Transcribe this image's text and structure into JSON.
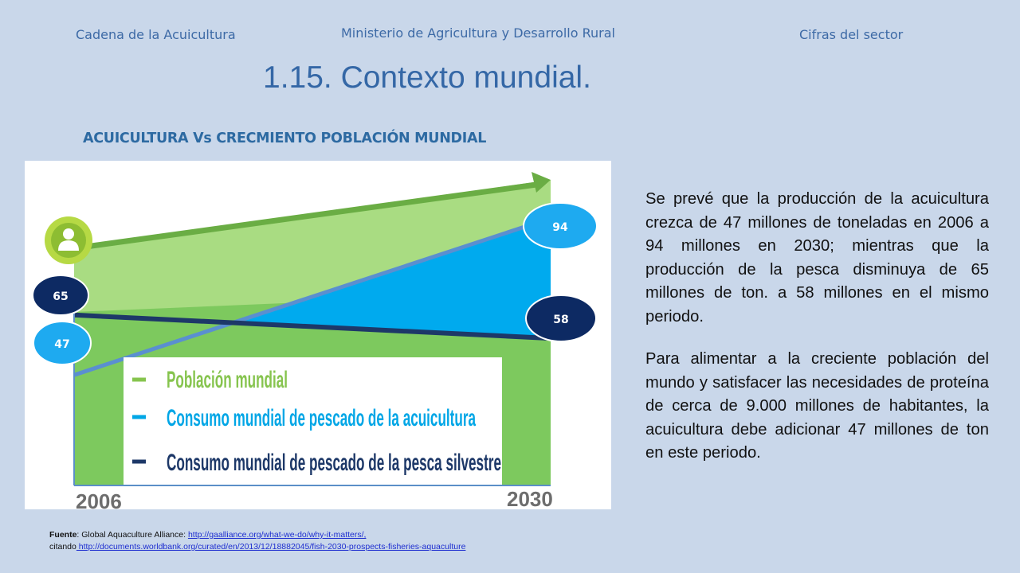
{
  "header": {
    "left": "Cadena de la Acuicultura",
    "center": "Ministerio de Agricultura y Desarrollo Rural",
    "right": "Cifras del sector"
  },
  "slide_title": "1.15. Contexto mundial.",
  "chart_data": {
    "type": "area",
    "title": "ACUICULTURA Vs CRECMIENTO POBLACIÓN MUNDIAL",
    "x": [
      "2006",
      "2030"
    ],
    "series": [
      {
        "name": "Población mundial",
        "values": [
          null,
          null
        ],
        "color": "#6aad44"
      },
      {
        "name": "Consumo mundial de pescado de la acuicultura",
        "values": [
          47,
          94
        ],
        "color": "#00aaee"
      },
      {
        "name": "Consumo mundial de pescado de la pesca silvestre",
        "values": [
          65,
          58
        ],
        "color": "#1d3868"
      }
    ],
    "data_labels": [
      "65",
      "47",
      "94",
      "58"
    ],
    "legend_position": "bottom-center",
    "icons": [
      "person-icon"
    ]
  },
  "paragraphs": [
    "Se prevé que la producción de la acuicultura crezca de 47 millones de toneladas en 2006 a 94 millones en 2030; mientras que la producción de la pesca disminuya de 65 millones de ton. a 58 millones en el mismo periodo.",
    "Para alimentar a la creciente población del mundo y satisfacer las necesidades de proteína de cerca de 9.000 millones de habitantes, la acuicultura debe adicionar 47 millones de ton en este periodo."
  ],
  "source": {
    "label": "Fuente",
    "text": ": Global Aquaculture Alliance: ",
    "link1": "http://gaalliance.org/what-we-do/why-it-matters/,",
    "citando": "citando",
    "link2": " http://documents.worldbank.org/curated/en/2013/12/18882045/fish-2030-prospects-fisheries-aquaculture"
  }
}
